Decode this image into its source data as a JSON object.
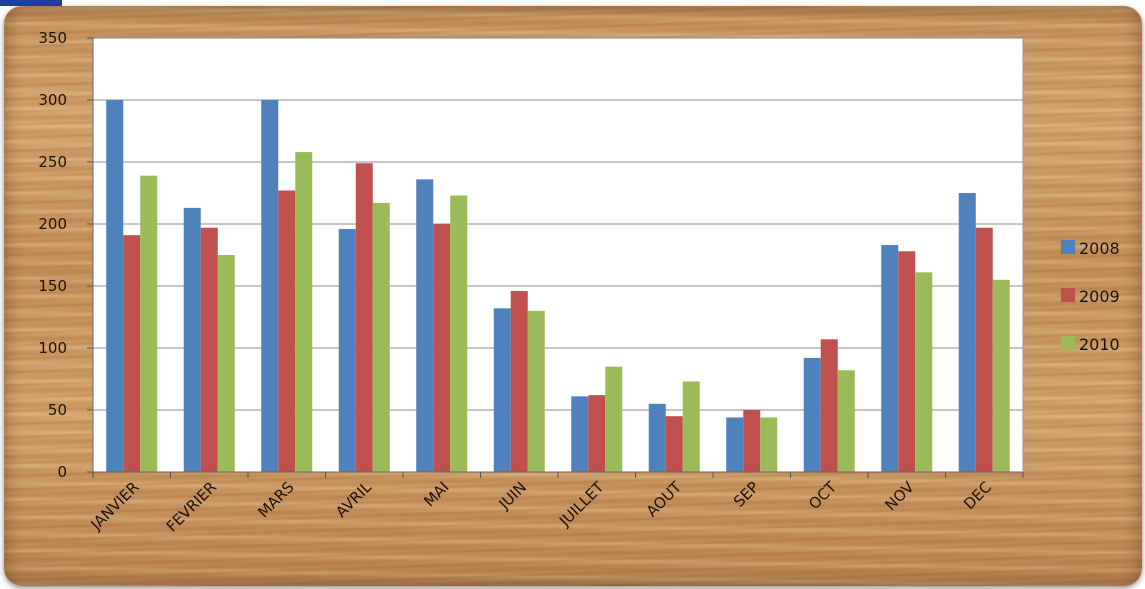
{
  "chart_data": {
    "type": "bar",
    "categories": [
      "JANVIER",
      "FEVRIER",
      "MARS",
      "AVRIL",
      "MAI",
      "JUIN",
      "JUILLET",
      "AOUT",
      "SEP",
      "OCT",
      "NOV",
      "DEC"
    ],
    "series": [
      {
        "name": "2008",
        "color": "#4f81bd",
        "values": [
          300,
          213,
          300,
          196,
          236,
          132,
          61,
          55,
          44,
          92,
          183,
          225
        ]
      },
      {
        "name": "2009",
        "color": "#c0504d",
        "values": [
          191,
          197,
          227,
          249,
          200,
          146,
          62,
          45,
          50,
          107,
          178,
          197
        ]
      },
      {
        "name": "2010",
        "color": "#9bbb59",
        "values": [
          239,
          175,
          258,
          217,
          223,
          130,
          85,
          73,
          44,
          82,
          161,
          155
        ]
      }
    ],
    "ylim": [
      0,
      350
    ],
    "yticks": [
      0,
      50,
      100,
      150,
      200,
      250,
      300,
      350
    ],
    "grid": true,
    "legend": "right",
    "title": "",
    "xlabel": "",
    "ylabel": ""
  }
}
